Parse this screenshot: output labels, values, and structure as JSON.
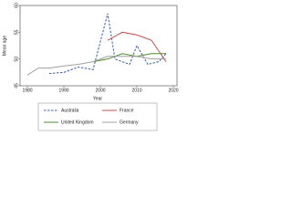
{
  "chart_data": {
    "type": "line",
    "x_label": "Year",
    "y_label": "Mean age",
    "xlim": [
      1978,
      2021
    ],
    "xticks": [
      1980,
      1990,
      2000,
      2010,
      2020
    ],
    "ylim": [
      45,
      60
    ],
    "yticks": [
      45,
      50,
      55,
      60
    ],
    "legend": "bottom",
    "series": [
      {
        "name": "Australia",
        "color": "#3a5fa8",
        "dash": true,
        "x": [
          1986,
          1990,
          1994,
          1998,
          2002,
          2004,
          2006,
          2008,
          2010,
          2013,
          2016,
          2018
        ],
        "values": [
          47.3,
          47.5,
          48.5,
          48,
          58.5,
          50,
          49.5,
          49,
          52.5,
          49,
          49.5,
          51
        ]
      },
      {
        "name": "France",
        "color": "#c0504d",
        "dash": false,
        "x": [
          2002,
          2006,
          2010,
          2014,
          2018
        ],
        "values": [
          53.5,
          55,
          54.5,
          53.5,
          49.5
        ]
      },
      {
        "name": "United Kingdom",
        "color": "#4f8a2f",
        "dash": false,
        "x": [
          1998,
          2002,
          2006,
          2010,
          2014,
          2018
        ],
        "values": [
          49.5,
          50,
          51,
          50.5,
          51,
          51
        ]
      },
      {
        "name": "Germany",
        "color": "#a0a0a0",
        "dash": false,
        "x": [
          1980,
          1983,
          1986,
          1990,
          1994,
          1998,
          2002,
          2006,
          2010,
          2014,
          2018
        ],
        "values": [
          47,
          48.3,
          48.3,
          48.7,
          49,
          49.5,
          50.5,
          50.5,
          50.5,
          50,
          50
        ]
      }
    ]
  }
}
